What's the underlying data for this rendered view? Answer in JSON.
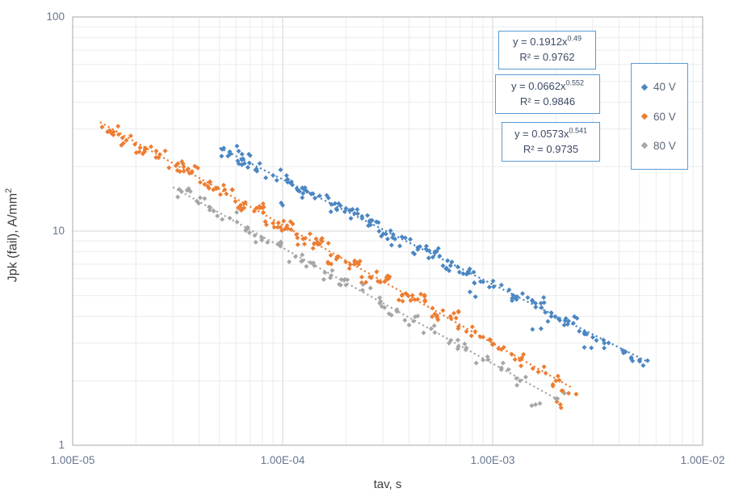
{
  "colors": {
    "series_blue": "#4a86c2",
    "series_orange": "#ED7D31",
    "series_gray": "#A6A6A6",
    "box_border": "#5B9BD5",
    "grid_minor": "#ebebeb",
    "grid_major": "#d3d3d3",
    "plot_border": "#c0c0c0",
    "tick_text": "#68768e"
  },
  "annotations": [
    {
      "equation": "y = 0.1912x",
      "exponent": "0.49",
      "r2": "R² = 0.9762"
    },
    {
      "equation": "y = 0.0662x",
      "exponent": "0.552",
      "r2": "R² = 0.9846"
    },
    {
      "equation": "y = 0.0573x",
      "exponent": "0.541",
      "r2": "R² = 0.9735"
    }
  ],
  "chart_data": {
    "type": "scatter",
    "title": "",
    "xlabel": "tav, s",
    "ylabel": "Jpk (fail),  A/mm²",
    "ylabel_main": "Jpk (fail),  A/mm",
    "ylabel_sup": "2",
    "grid": true,
    "legend_position": "inside-right",
    "x_axis": {
      "scale": "log",
      "min": 1e-05,
      "max": 0.01,
      "ticks": [
        {
          "label": "1.00E-05",
          "value": 1e-05
        },
        {
          "label": "1.00E-04",
          "value": 0.0001
        },
        {
          "label": "1.00E-03",
          "value": 0.001
        },
        {
          "label": "1.00E-02",
          "value": 0.01
        }
      ]
    },
    "y_axis": {
      "scale": "log",
      "min": 1,
      "max": 100,
      "ticks": [
        {
          "label": "100",
          "value": 100
        },
        {
          "label": "10",
          "value": 10
        },
        {
          "label": "1",
          "value": 1
        }
      ]
    },
    "series": [
      {
        "name": "40 V",
        "color": "#4a86c2",
        "trend": {
          "a": 0.1912,
          "b": -0.49,
          "x_start": 5e-05,
          "x_end": 0.0055
        },
        "clusters": [
          [
            5.6e-05,
            23.5,
            8
          ],
          [
            6.4e-05,
            21.5,
            10
          ],
          [
            7.5e-05,
            19.5,
            5
          ],
          [
            9e-05,
            18.2,
            4
          ],
          [
            0.000105,
            17.4,
            7
          ],
          [
            0.000125,
            15.0,
            9
          ],
          [
            0.00015,
            14.6,
            6
          ],
          [
            0.00018,
            12.7,
            8
          ],
          [
            0.00022,
            12.1,
            10
          ],
          [
            0.00026,
            11.2,
            9
          ],
          [
            0.00031,
            9.7,
            7
          ],
          [
            0.00037,
            9.4,
            5
          ],
          [
            0.00044,
            8.2,
            6
          ],
          [
            0.00053,
            7.9,
            9
          ],
          [
            0.00063,
            6.9,
            8
          ],
          [
            0.00075,
            6.3,
            7
          ],
          [
            0.0009,
            5.8,
            5
          ],
          [
            0.0011,
            5.6,
            4
          ],
          [
            0.0013,
            4.8,
            7
          ],
          [
            0.0016,
            4.6,
            9
          ],
          [
            0.0019,
            4.0,
            7
          ],
          [
            0.0023,
            3.8,
            8
          ],
          [
            0.0028,
            3.3,
            6
          ],
          [
            0.0034,
            3.0,
            5
          ],
          [
            0.0042,
            2.7,
            6
          ],
          [
            0.005,
            2.5,
            5
          ],
          [
            0.0001,
            13.2,
            2
          ],
          [
            0.00033,
            8.6,
            2
          ],
          [
            0.00078,
            5.2,
            2
          ],
          [
            0.0017,
            3.5,
            2
          ],
          [
            0.00295,
            2.85,
            2
          ]
        ]
      },
      {
        "name": "60 V",
        "color": "#ED7D31",
        "trend": {
          "a": 0.0662,
          "b": -0.552,
          "x_start": 1.35e-05,
          "x_end": 0.0024
        },
        "clusters": [
          [
            1.5e-05,
            29.5,
            9
          ],
          [
            1.8e-05,
            26.5,
            6
          ],
          [
            2.2e-05,
            23.5,
            8
          ],
          [
            2.6e-05,
            22.8,
            5
          ],
          [
            3.1e-05,
            20.2,
            7
          ],
          [
            3.7e-05,
            19.0,
            9
          ],
          [
            4.4e-05,
            16.2,
            8
          ],
          [
            5.3e-05,
            15.6,
            7
          ],
          [
            6.3e-05,
            13.2,
            9
          ],
          [
            7.5e-05,
            12.8,
            8
          ],
          [
            9e-05,
            10.9,
            7
          ],
          [
            0.000105,
            10.6,
            9
          ],
          [
            0.000125,
            9.2,
            8
          ],
          [
            0.00015,
            8.7,
            10
          ],
          [
            0.00018,
            7.4,
            8
          ],
          [
            0.00022,
            7.0,
            9
          ],
          [
            0.00026,
            6.1,
            7
          ],
          [
            0.00031,
            5.9,
            8
          ],
          [
            0.00037,
            5.0,
            7
          ],
          [
            0.00044,
            4.8,
            8
          ],
          [
            0.00053,
            4.1,
            7
          ],
          [
            0.00063,
            4.0,
            6
          ],
          [
            0.00075,
            3.4,
            6
          ],
          [
            0.0009,
            3.2,
            5
          ],
          [
            0.0011,
            2.8,
            5
          ],
          [
            0.00135,
            2.5,
            6
          ],
          [
            0.00165,
            2.2,
            4
          ],
          [
            0.002,
            2.0,
            5
          ],
          [
            0.0023,
            1.75,
            4
          ],
          [
            0.0021,
            1.55,
            3
          ]
        ]
      },
      {
        "name": "80 V",
        "color": "#A6A6A6",
        "trend": {
          "a": 0.0573,
          "b": -0.541,
          "x_start": 3e-05,
          "x_end": 0.0021
        },
        "clusters": [
          [
            3.3e-05,
            15.3,
            6
          ],
          [
            3.9e-05,
            13.8,
            4
          ],
          [
            4.7e-05,
            12.4,
            5
          ],
          [
            5.6e-05,
            11.5,
            4
          ],
          [
            6.7e-05,
            10.2,
            5
          ],
          [
            8e-05,
            9.3,
            6
          ],
          [
            9.5e-05,
            8.7,
            4
          ],
          [
            0.000115,
            7.6,
            5
          ],
          [
            0.00014,
            7.1,
            4
          ],
          [
            0.00017,
            6.2,
            5
          ],
          [
            0.0002,
            5.6,
            6
          ],
          [
            0.00024,
            5.3,
            4
          ],
          [
            0.00029,
            4.6,
            5
          ],
          [
            0.00035,
            4.3,
            4
          ],
          [
            0.00042,
            3.8,
            5
          ],
          [
            0.00051,
            3.5,
            4
          ],
          [
            0.00062,
            3.0,
            4
          ],
          [
            0.00075,
            2.85,
            4
          ],
          [
            0.0009,
            2.5,
            4
          ],
          [
            0.0011,
            2.3,
            4
          ],
          [
            0.00135,
            2.0,
            4
          ],
          [
            0.0016,
            1.55,
            3
          ],
          [
            0.002,
            1.65,
            3
          ]
        ]
      }
    ]
  }
}
